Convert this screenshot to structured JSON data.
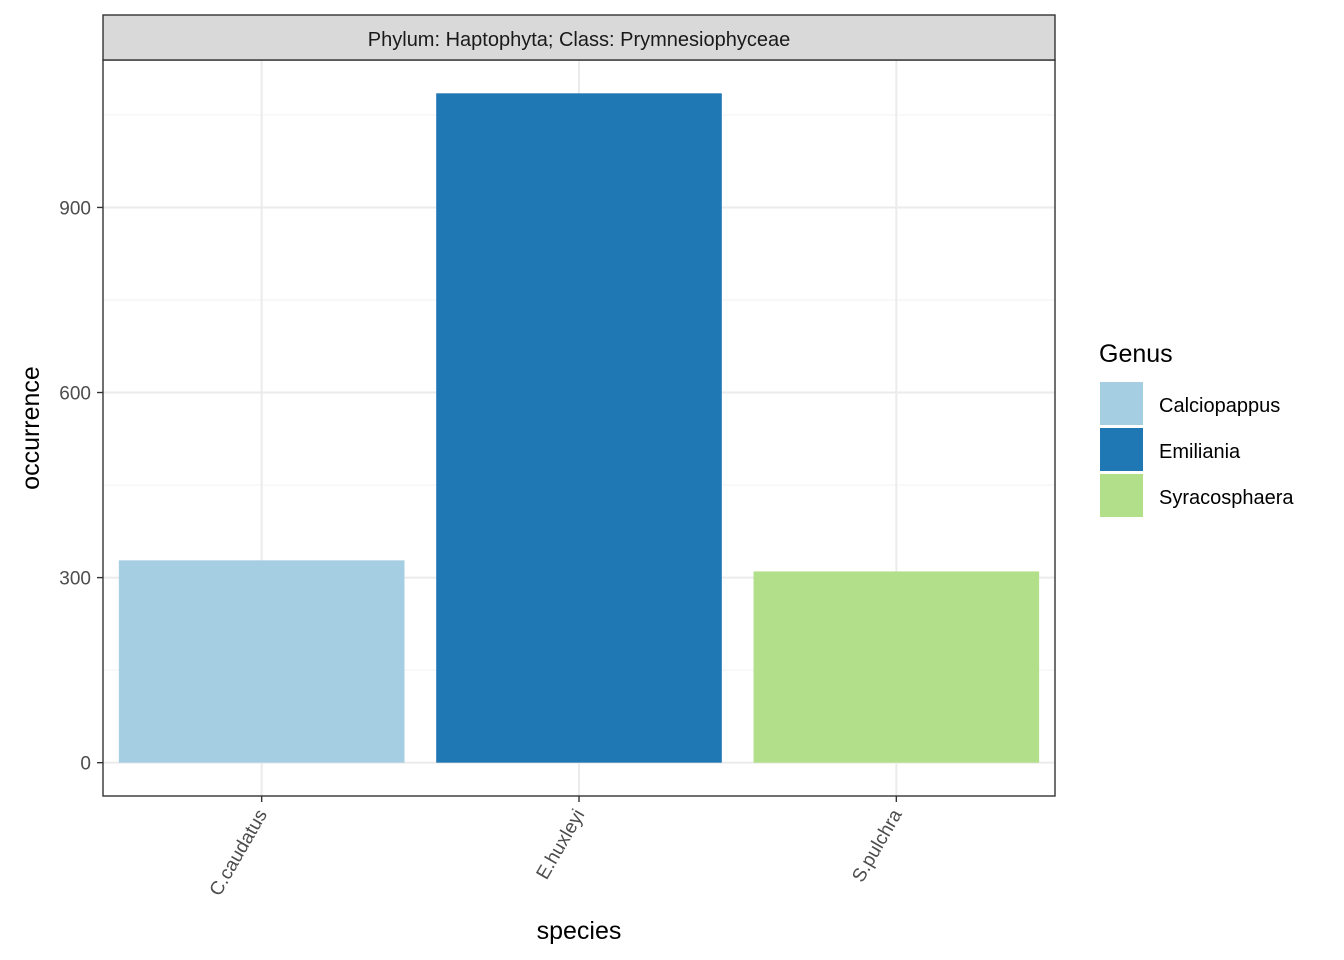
{
  "chart_data": {
    "type": "bar",
    "facet_label": "Phylum: Haptophyta; Class: Prymnesiophyceae",
    "categories": [
      "C.caudatus",
      "E.huxleyi",
      "S.pulchra"
    ],
    "values": [
      328,
      1085,
      310
    ],
    "fill_group": [
      "Calciopappus",
      "Emiliania",
      "Syracosphaera"
    ],
    "xlabel": "species",
    "ylabel": "occurrence",
    "yticks": [
      0,
      300,
      600,
      900
    ],
    "ylim": [
      -54,
      1139
    ],
    "grid": true,
    "legend": {
      "title": "Genus",
      "placement": "right",
      "entries": [
        {
          "name": "Calciopappus",
          "color": "#a6cee3"
        },
        {
          "name": "Emiliania",
          "color": "#1f78b4"
        },
        {
          "name": "Syracosphaera",
          "color": "#b2df8a"
        }
      ]
    }
  }
}
